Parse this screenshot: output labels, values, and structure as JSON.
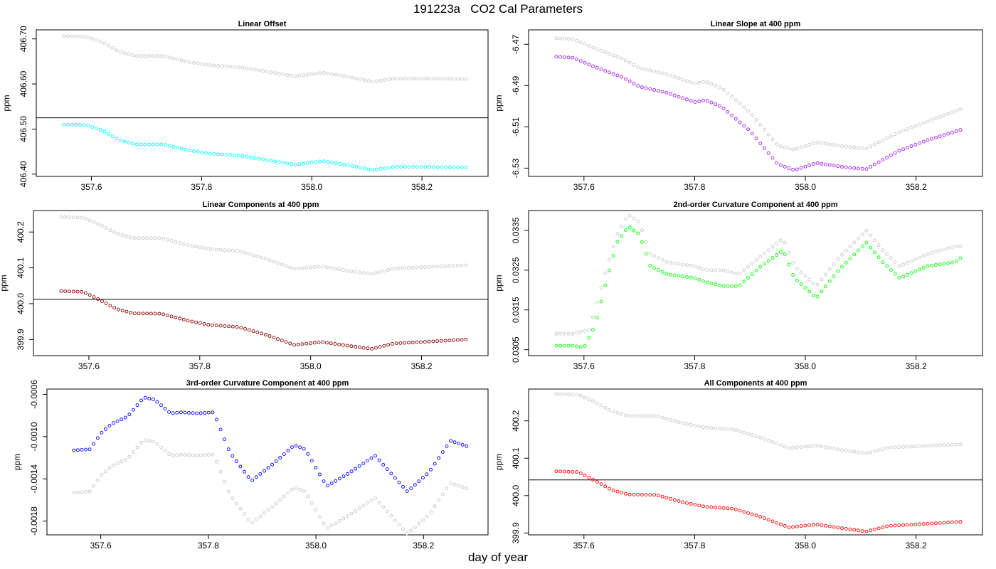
{
  "figure": {
    "title": "191223a   CO2 Cal Parameters",
    "xlabel": "day of year"
  },
  "chart_data": [
    {
      "type": "scatter",
      "title": "Linear Offset",
      "ylabel": "ppm",
      "xlim": [
        357.5,
        358.32
      ],
      "ylim": [
        406.395,
        406.72
      ],
      "xticks": [
        357.6,
        357.8,
        358.0,
        358.2
      ],
      "xtick_labels": [
        "357.6",
        "357.8",
        "358.0",
        "358.2"
      ],
      "yticks": [
        406.4,
        406.5,
        406.6,
        406.7
      ],
      "ytick_labels": [
        "406.40",
        "406.50",
        "406.60",
        "406.70"
      ],
      "hline": 406.525,
      "series": [
        {
          "color": "#c8c8c8",
          "x": [
            357.55,
            357.59,
            357.62,
            357.65,
            357.68,
            357.73,
            357.78,
            357.82,
            357.87,
            357.92,
            357.97,
            358.02,
            358.07,
            358.11,
            358.15,
            358.2,
            358.28
          ],
          "y": [
            406.706,
            406.705,
            406.693,
            406.672,
            406.662,
            406.662,
            406.648,
            406.641,
            406.637,
            406.627,
            406.617,
            406.625,
            406.615,
            406.605,
            406.612,
            406.612,
            406.611
          ]
        },
        {
          "color": "#00ffff",
          "x": [
            357.55,
            357.59,
            357.62,
            357.65,
            357.68,
            357.73,
            357.78,
            357.82,
            357.87,
            357.92,
            357.97,
            358.02,
            358.07,
            358.11,
            358.15,
            358.2,
            358.28
          ],
          "y": [
            406.51,
            406.509,
            406.497,
            406.476,
            406.466,
            406.466,
            406.452,
            406.445,
            406.441,
            406.431,
            406.421,
            406.429,
            406.419,
            406.409,
            406.416,
            406.416,
            406.415
          ]
        }
      ]
    },
    {
      "type": "scatter",
      "title": "Linear Slope at 400 ppm",
      "ylabel": "ppm",
      "xlim": [
        357.5,
        358.32
      ],
      "ylim": [
        -6.534,
        -6.463
      ],
      "xticks": [
        357.6,
        357.8,
        358.0,
        358.2
      ],
      "xtick_labels": [
        "357.6",
        "357.8",
        "358.0",
        "358.2"
      ],
      "yticks": [
        -6.53,
        -6.51,
        -6.49,
        -6.47
      ],
      "ytick_labels": [
        "-6.53",
        "-6.51",
        "-6.49",
        "-6.47"
      ],
      "series": [
        {
          "color": "#c8c8c8",
          "x": [
            357.55,
            357.58,
            357.62,
            357.67,
            357.7,
            357.75,
            357.8,
            357.82,
            357.85,
            357.9,
            357.95,
            357.98,
            358.02,
            358.07,
            358.11,
            358.17,
            358.22,
            358.28
          ],
          "y": [
            -6.467,
            -6.4675,
            -6.472,
            -6.477,
            -6.4815,
            -6.4845,
            -6.489,
            -6.488,
            -6.4915,
            -6.503,
            -6.519,
            -6.521,
            -6.5175,
            -6.5195,
            -6.5205,
            -6.5125,
            -6.5075,
            -6.5015
          ]
        },
        {
          "color": "#a020f0",
          "x": [
            357.55,
            357.58,
            357.62,
            357.67,
            357.7,
            357.75,
            357.8,
            357.82,
            357.85,
            357.9,
            357.95,
            357.98,
            358.02,
            358.07,
            358.11,
            358.17,
            358.22,
            358.28
          ],
          "y": [
            -6.476,
            -6.4765,
            -6.481,
            -6.486,
            -6.4905,
            -6.4935,
            -6.498,
            -6.497,
            -6.5005,
            -6.512,
            -6.528,
            -6.531,
            -6.5275,
            -6.5295,
            -6.5305,
            -6.5215,
            -6.5165,
            -6.5115
          ]
        }
      ]
    },
    {
      "type": "scatter",
      "title": "Linear Components at 400 ppm",
      "ylabel": "ppm",
      "xlim": [
        357.5,
        358.32
      ],
      "ylim": [
        399.855,
        400.26
      ],
      "xticks": [
        357.6,
        357.8,
        358.0,
        358.2
      ],
      "xtick_labels": [
        "357.6",
        "357.8",
        "358.0",
        "358.2"
      ],
      "yticks": [
        399.9,
        400.0,
        400.1,
        400.2
      ],
      "ytick_labels": [
        "399.9",
        "400.0",
        "400.1",
        "400.2"
      ],
      "hline": 400.012,
      "series": [
        {
          "color": "#c8c8c8",
          "x": [
            357.55,
            357.59,
            357.62,
            357.65,
            357.68,
            357.73,
            357.78,
            357.82,
            357.87,
            357.92,
            357.97,
            358.02,
            358.07,
            358.11,
            358.15,
            358.2,
            358.28
          ],
          "y": [
            400.242,
            400.24,
            400.22,
            400.196,
            400.183,
            400.183,
            400.163,
            400.152,
            400.147,
            400.125,
            400.097,
            400.104,
            400.091,
            400.083,
            400.098,
            400.102,
            400.107
          ]
        },
        {
          "color": "#8b0000",
          "x": [
            357.55,
            357.59,
            357.62,
            357.65,
            357.68,
            357.73,
            357.78,
            357.82,
            357.87,
            357.92,
            357.97,
            358.02,
            358.07,
            358.11,
            358.15,
            358.2,
            358.28
          ],
          "y": [
            400.035,
            400.033,
            400.01,
            399.985,
            399.973,
            399.972,
            399.952,
            399.94,
            399.935,
            399.913,
            399.885,
            399.893,
            399.882,
            399.874,
            399.889,
            399.893,
            399.9
          ]
        }
      ]
    },
    {
      "type": "scatter",
      "title": "2nd-order Curvature Component at 400 ppm",
      "ylabel": "ppm",
      "xlim": [
        357.5,
        358.32
      ],
      "ylim": [
        0.03035,
        0.034
      ],
      "xticks": [
        357.6,
        357.8,
        358.0,
        358.2
      ],
      "xtick_labels": [
        "357.6",
        "357.8",
        "358.0",
        "358.2"
      ],
      "yticks": [
        0.0305,
        0.0315,
        0.0325,
        0.0335
      ],
      "ytick_labels": [
        "0.0305",
        "0.0315",
        "0.0325",
        "0.0335"
      ],
      "series": [
        {
          "color": "#c8c8c8",
          "x": [
            357.55,
            357.58,
            357.61,
            357.64,
            357.66,
            357.68,
            357.7,
            357.72,
            357.75,
            357.8,
            357.82,
            357.85,
            357.88,
            357.92,
            357.96,
            357.98,
            358.02,
            358.06,
            358.11,
            358.14,
            358.17,
            358.22,
            358.27,
            358.28
          ],
          "y": [
            0.0309,
            0.0309,
            0.031,
            0.0325,
            0.0334,
            0.0339,
            0.0337,
            0.0329,
            0.0327,
            0.0326,
            0.0325,
            0.0325,
            0.0324,
            0.03285,
            0.0333,
            0.0326,
            0.0321,
            0.0328,
            0.0335,
            0.033,
            0.0326,
            0.0329,
            0.0331,
            0.0331
          ]
        },
        {
          "color": "#00ff00",
          "x": [
            357.55,
            357.58,
            357.6,
            357.62,
            357.64,
            357.66,
            357.68,
            357.7,
            357.72,
            357.75,
            357.8,
            357.82,
            357.85,
            357.88,
            357.92,
            357.96,
            357.98,
            358.02,
            358.06,
            358.11,
            358.14,
            358.17,
            358.22,
            358.27,
            358.28
          ],
          "y": [
            0.0306,
            0.0306,
            0.03055,
            0.0311,
            0.0322,
            0.0332,
            0.0336,
            0.0334,
            0.0326,
            0.0324,
            0.0323,
            0.0322,
            0.0321,
            0.0321,
            0.0326,
            0.033,
            0.0323,
            0.0318,
            0.0325,
            0.0332,
            0.0327,
            0.0323,
            0.0326,
            0.0327,
            0.0328
          ]
        }
      ]
    },
    {
      "type": "scatter",
      "title": "3rd-order Curvature Component at 400 ppm",
      "ylabel": "ppm",
      "xlim": [
        357.5,
        358.32
      ],
      "ylim": [
        -0.00193,
        -0.00055
      ],
      "xticks": [
        357.6,
        357.8,
        358.0,
        358.2
      ],
      "xtick_labels": [
        "357.6",
        "357.8",
        "358.0",
        "358.2"
      ],
      "yticks": [
        -0.0018,
        -0.0014,
        -0.001,
        -0.0006
      ],
      "ytick_labels": [
        "-0.0018",
        "-0.0014",
        "-0.0010",
        "-0.0006"
      ],
      "series": [
        {
          "color": "#c8c8c8",
          "x": [
            357.55,
            357.58,
            357.6,
            357.62,
            357.65,
            357.68,
            357.7,
            357.73,
            357.75,
            357.78,
            357.81,
            357.84,
            357.88,
            357.92,
            357.96,
            357.98,
            358.02,
            358.06,
            358.11,
            358.14,
            358.17,
            358.21,
            358.25,
            358.28
          ],
          "y": [
            -0.00153,
            -0.00152,
            -0.00137,
            -0.00128,
            -0.00121,
            -0.00103,
            -0.00105,
            -0.00118,
            -0.00117,
            -0.00118,
            -0.00117,
            -0.00155,
            -0.00182,
            -0.00166,
            -0.00148,
            -0.00152,
            -0.00187,
            -0.00175,
            -0.00158,
            -0.00175,
            -0.00192,
            -0.00174,
            -0.00144,
            -0.00149
          ]
        },
        {
          "color": "#0000ff",
          "x": [
            357.55,
            357.58,
            357.6,
            357.62,
            357.65,
            357.68,
            357.7,
            357.73,
            357.75,
            357.78,
            357.81,
            357.84,
            357.88,
            357.92,
            357.96,
            357.98,
            358.02,
            358.06,
            358.11,
            358.14,
            358.17,
            358.21,
            358.25,
            358.28
          ],
          "y": [
            -0.00113,
            -0.00112,
            -0.00097,
            -0.00088,
            -0.00081,
            -0.00063,
            -0.00065,
            -0.00078,
            -0.00077,
            -0.00078,
            -0.00077,
            -0.00115,
            -0.00142,
            -0.00126,
            -0.00108,
            -0.00112,
            -0.00147,
            -0.00135,
            -0.00118,
            -0.00135,
            -0.00152,
            -0.00134,
            -0.00104,
            -0.00109
          ]
        }
      ]
    },
    {
      "type": "scatter",
      "title": "All Components at 400 ppm",
      "ylabel": "ppm",
      "xlim": [
        357.5,
        358.32
      ],
      "ylim": [
        399.895,
        400.285
      ],
      "xticks": [
        357.6,
        357.8,
        358.0,
        358.2
      ],
      "xtick_labels": [
        "357.6",
        "357.8",
        "358.0",
        "358.2"
      ],
      "yticks": [
        399.9,
        400.0,
        400.1,
        400.2
      ],
      "ytick_labels": [
        "399.9",
        "400.0",
        "400.1",
        "400.2"
      ],
      "hline": 400.042,
      "series": [
        {
          "color": "#c8c8c8",
          "x": [
            357.55,
            357.59,
            357.62,
            357.65,
            357.68,
            357.73,
            357.78,
            357.82,
            357.87,
            357.92,
            357.97,
            358.02,
            358.07,
            358.11,
            358.15,
            358.2,
            358.28
          ],
          "y": [
            400.272,
            400.27,
            400.25,
            400.226,
            400.213,
            400.213,
            400.193,
            400.182,
            400.177,
            400.155,
            400.127,
            400.134,
            400.121,
            400.113,
            400.128,
            400.132,
            400.137
          ]
        },
        {
          "color": "#ff0000",
          "x": [
            357.55,
            357.59,
            357.62,
            357.65,
            357.68,
            357.73,
            357.78,
            357.82,
            357.87,
            357.92,
            357.97,
            358.02,
            358.07,
            358.11,
            358.15,
            358.2,
            358.28
          ],
          "y": [
            400.065,
            400.063,
            400.04,
            400.015,
            400.003,
            400.002,
            399.982,
            399.97,
            399.965,
            399.943,
            399.915,
            399.923,
            399.912,
            399.904,
            399.919,
            399.923,
            399.93
          ]
        }
      ]
    }
  ]
}
